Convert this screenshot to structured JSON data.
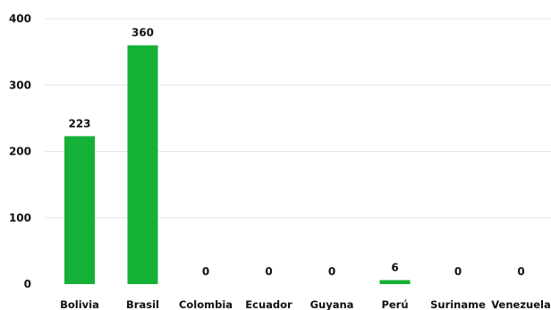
{
  "chart_data": {
    "type": "bar",
    "categories": [
      "Bolivia",
      "Brasil",
      "Colombia",
      "Ecuador",
      "Guyana",
      "Perú",
      "Suriname",
      "Venezuela"
    ],
    "values": [
      223,
      360,
      0,
      0,
      0,
      6,
      0,
      0
    ],
    "data_labels": [
      "223",
      "360",
      "0",
      "0",
      "0",
      "6",
      "0",
      "0"
    ],
    "yticks": [
      0,
      100,
      200,
      300,
      400
    ],
    "ylim": [
      0,
      400
    ],
    "grid": true,
    "bar_color": "#15b036"
  }
}
